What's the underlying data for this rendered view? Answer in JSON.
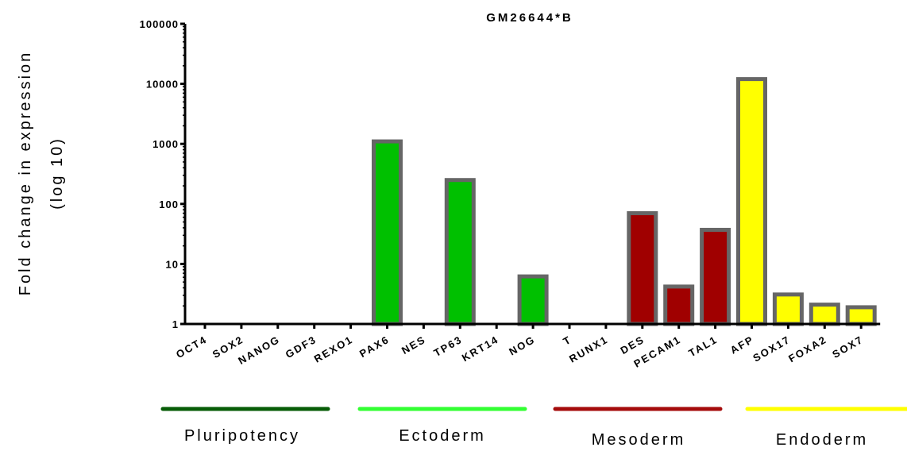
{
  "chart_data": {
    "type": "bar",
    "title": "GM26644*B",
    "ylabel_line1": "Fold change in expression",
    "ylabel_line2": "(log 10)",
    "y_scale": "log10",
    "ylim": [
      1,
      100000
    ],
    "yticks": [
      {
        "value": 1,
        "label": "1"
      },
      {
        "value": 10,
        "label": "10"
      },
      {
        "value": 100,
        "label": "100"
      },
      {
        "value": 1000,
        "label": "1000"
      },
      {
        "value": 10000,
        "label": "10000"
      },
      {
        "value": 100000,
        "label": "100000"
      }
    ],
    "categories": [
      "OCT4",
      "SOX2",
      "NANOG",
      "GDF3",
      "REXO1",
      "PAX6",
      "NES",
      "TP63",
      "KRT14",
      "NOG",
      "T",
      "RUNX1",
      "DES",
      "PECAM1",
      "TAL1",
      "AFP",
      "SOX17",
      "FOXA2",
      "SOX7"
    ],
    "values": [
      1,
      1,
      1,
      1,
      1,
      1100,
      1,
      250,
      1,
      6.2,
      1,
      1,
      70,
      4.2,
      37,
      12000,
      3.1,
      2.1,
      1.9
    ],
    "groups": [
      {
        "name": "Pluripotency",
        "start": 0,
        "end": 4,
        "color": "#075c07"
      },
      {
        "name": "Ectoderm",
        "start": 5,
        "end": 9,
        "color": "#00c000",
        "line_color": "#33ff33"
      },
      {
        "name": "Mesoderm",
        "start": 10,
        "end": 14,
        "color": "#a00000",
        "line_color": "#a50c0c"
      },
      {
        "name": "Endoderm",
        "start": 15,
        "end": 18,
        "color": "#ffff00"
      }
    ],
    "bar_border_color": "#666666",
    "grid": false,
    "legend": "none"
  }
}
